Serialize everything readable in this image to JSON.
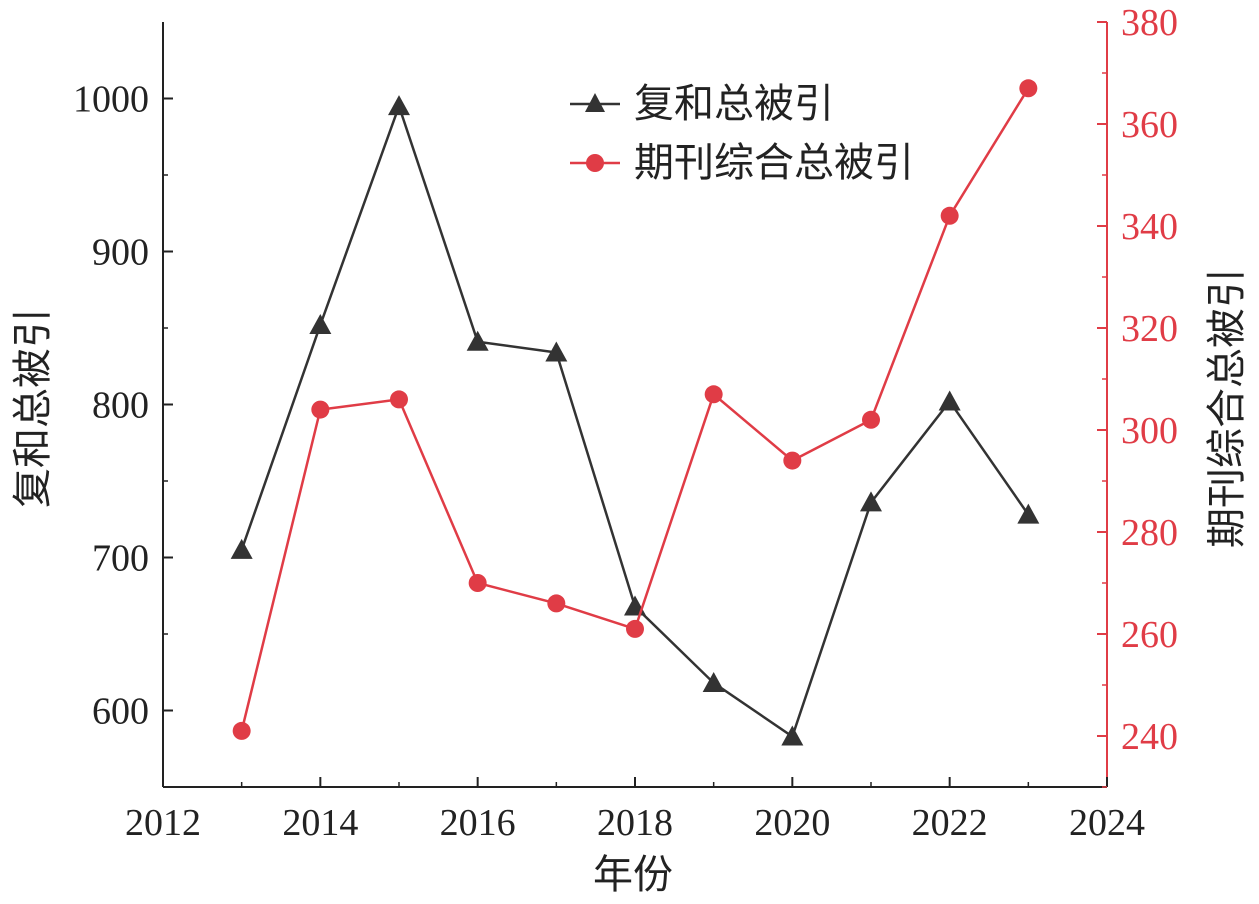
{
  "chart_data": {
    "type": "line",
    "x": [
      2013,
      2014,
      2015,
      2016,
      2017,
      2018,
      2019,
      2020,
      2021,
      2022,
      2023
    ],
    "xlabel": "年份",
    "xlim": [
      2012,
      2024
    ],
    "xticks": [
      "2012",
      "2014",
      "2016",
      "2018",
      "2020",
      "2022",
      "2024"
    ],
    "left_axis": {
      "label": "复和总被引",
      "ylim": [
        550,
        1050
      ],
      "ticks": [
        "600",
        "700",
        "800",
        "900",
        "1000"
      ],
      "color": "#000000"
    },
    "right_axis": {
      "label": "期刊综合总被引",
      "ylim": [
        230,
        380
      ],
      "ticks": [
        "240",
        "260",
        "280",
        "300",
        "320",
        "340",
        "360",
        "380"
      ],
      "color": "#e03c46"
    },
    "series": [
      {
        "name": "复和总被引",
        "axis": "left",
        "marker": "triangle",
        "color": "#333333",
        "values": [
          705,
          852,
          995,
          841,
          834,
          668,
          618,
          583,
          736,
          802,
          728
        ]
      },
      {
        "name": "期刊综合总被引",
        "axis": "right",
        "marker": "circle",
        "color": "#e03c46",
        "values": [
          241,
          304,
          306,
          270,
          266,
          261,
          307,
          294,
          302,
          342,
          367
        ]
      }
    ],
    "legend": "top-center",
    "grid": false
  }
}
